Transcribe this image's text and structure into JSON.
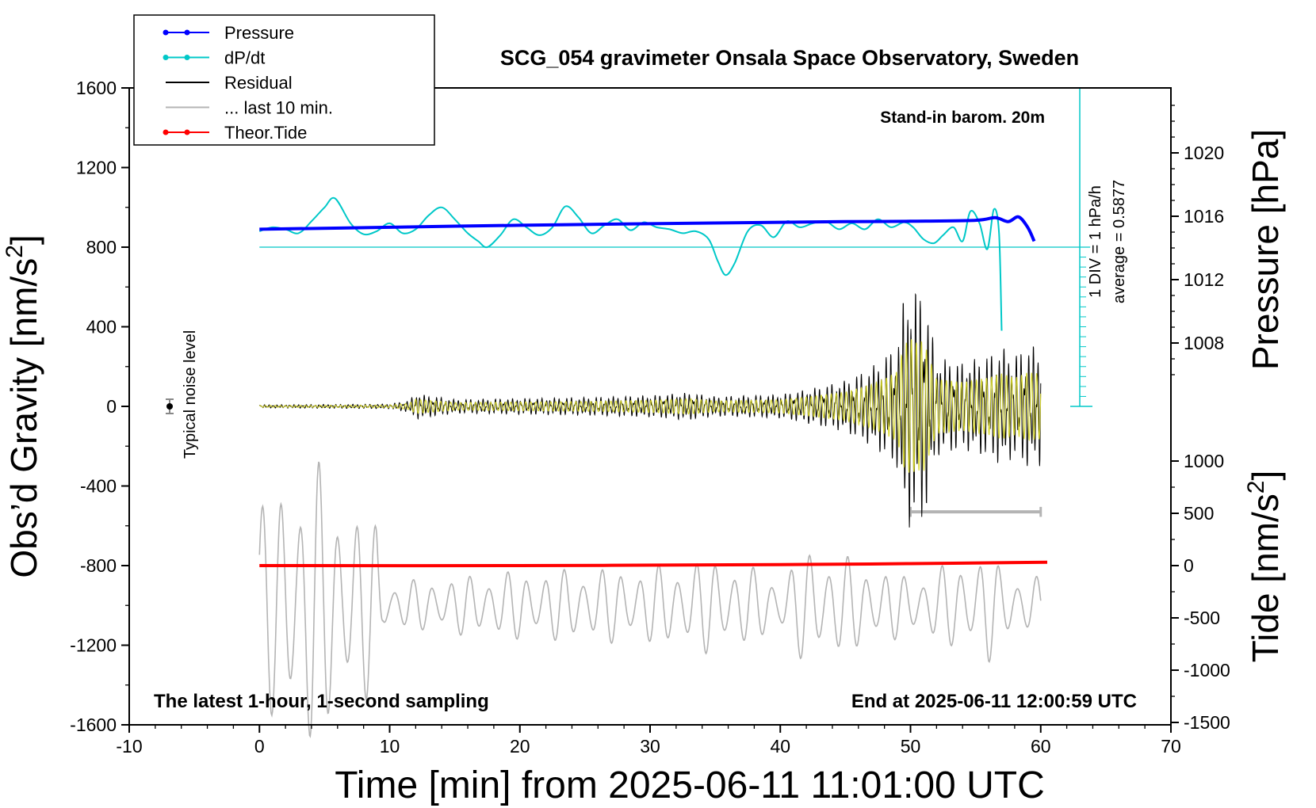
{
  "chart_data": {
    "type": "line",
    "title": "SCG_054 gravimeter Onsala Space Observatory, Sweden",
    "xlabel": "Time [min] from 2025-06-11 11:01:00 UTC",
    "xlim": [
      -10,
      70
    ],
    "xticks": [
      -10,
      0,
      10,
      20,
      30,
      40,
      50,
      60,
      70
    ],
    "ylabel_left": "Obs’d Gravity [nm/s",
    "ylabel_left_sup": "2",
    "ylabel_left_close": "]",
    "ylim_left": [
      -1600,
      1600
    ],
    "yticks_left": [
      -1600,
      -1200,
      -800,
      -400,
      0,
      400,
      800,
      1200,
      1600
    ],
    "ylabel_pressure": "Pressure [hPa]",
    "pressure_ticks": [
      1008,
      1012,
      1016,
      1020
    ],
    "ylabel_tide": "Tide [nm/s",
    "ylabel_tide_sup": "2",
    "ylabel_tide_close": "]",
    "tide_ticks": [
      -1500,
      -1000,
      -500,
      0,
      500,
      1000
    ],
    "annotations": {
      "standin": "Stand-in barom. 20m",
      "latest": "The latest 1-hour, 1-second sampling",
      "end": "End at 2025-06-11 12:00:59 UTC",
      "noise": "Typical noise level",
      "div": "1 DIV = 1 hPa/h",
      "average": "average = 0.5877"
    },
    "legend": [
      {
        "label": "Pressure",
        "color": "#0000ff",
        "marker": true
      },
      {
        "label": "dP/dt",
        "color": "#00c8c8",
        "marker": true
      },
      {
        "label": "Residual",
        "color": "#000000",
        "marker": false
      },
      {
        "label": "... last 10 min.",
        "color": "#b4b4b4",
        "marker": false
      },
      {
        "label": "Theor.Tide",
        "color": "#ff0000",
        "marker": true
      }
    ],
    "series": [
      {
        "name": "Pressure",
        "color": "#0000ff",
        "units": "nm/s2 (plotted)",
        "x": [
          0,
          10,
          20,
          30,
          40,
          45,
          50,
          55,
          56.5,
          57.5,
          58.3,
          59,
          59.5
        ],
        "y": [
          890,
          900,
          910,
          918,
          925,
          928,
          930,
          935,
          948,
          928,
          952,
          900,
          830
        ]
      },
      {
        "name": "dP/dt",
        "color": "#00c8c8",
        "units": "nm/s2 (plotted)",
        "x": [
          0,
          1,
          2,
          3,
          4,
          5,
          5.8,
          7,
          8,
          9,
          10,
          11,
          12,
          13,
          14,
          15,
          16,
          16.8,
          17.5,
          18.5,
          19.5,
          20.5,
          21.5,
          22.5,
          23.5,
          24.5,
          25.5,
          26.5,
          27.5,
          28.5,
          29.5,
          30.5,
          31.5,
          32.5,
          33.5,
          34.5,
          35.2,
          35.8,
          36.5,
          37.5,
          38.5,
          39.5,
          40.5,
          41.5,
          42.5,
          43.5,
          44.5,
          45.5,
          46.5,
          47.5,
          48.5,
          49.5,
          50.2,
          51,
          51.8,
          52.5,
          53.3,
          54,
          54.6,
          55.3,
          55.9,
          56.4,
          56.8,
          57
        ],
        "y": [
          880,
          900,
          890,
          870,
          930,
          1000,
          1045,
          920,
          865,
          880,
          920,
          870,
          890,
          960,
          1000,
          940,
          870,
          830,
          800,
          860,
          940,
          900,
          860,
          900,
          1005,
          950,
          870,
          910,
          940,
          885,
          925,
          900,
          890,
          870,
          880,
          840,
          730,
          660,
          720,
          880,
          910,
          850,
          930,
          900,
          920,
          930,
          890,
          920,
          890,
          940,
          900,
          925,
          900,
          840,
          820,
          860,
          900,
          830,
          980,
          920,
          790,
          990,
          870,
          380
        ]
      },
      {
        "name": "Residual",
        "color": "#000000",
        "units": "nm/s2",
        "x": [
          0,
          10,
          11.5,
          12,
          15,
          20,
          25,
          30,
          33,
          35,
          40,
          42,
          45,
          47,
          48,
          49,
          49.5,
          50,
          50.5,
          51,
          51.5,
          52,
          54,
          56,
          57,
          58,
          59,
          60
        ],
        "env": [
          8,
          12,
          30,
          65,
          35,
          40,
          45,
          55,
          70,
          50,
          60,
          85,
          130,
          200,
          250,
          320,
          560,
          620,
          580,
          600,
          420,
          250,
          220,
          260,
          300,
          260,
          310,
          300
        ]
      },
      {
        "name": "last 10 min",
        "color": "#b4b4b4",
        "units": "nm/s2 (plotted)",
        "x": [
          0,
          1,
          2,
          3,
          4,
          5,
          6,
          7,
          8,
          9,
          9.5,
          10,
          15,
          20,
          25,
          30,
          35,
          40,
          42,
          45,
          50,
          55,
          56,
          57,
          60
        ],
        "env": [
          600,
          550,
          650,
          700,
          820,
          650,
          600,
          520,
          480,
          450,
          150,
          120,
          150,
          180,
          190,
          200,
          250,
          150,
          300,
          250,
          150,
          260,
          300,
          180,
          150
        ]
      },
      {
        "name": "Theor.Tide",
        "color": "#ff0000",
        "units": "nm/s2",
        "x": [
          0,
          20,
          40,
          50,
          60.5
        ],
        "y": [
          -800,
          -800,
          -795,
          -790,
          -783
        ]
      }
    ]
  }
}
